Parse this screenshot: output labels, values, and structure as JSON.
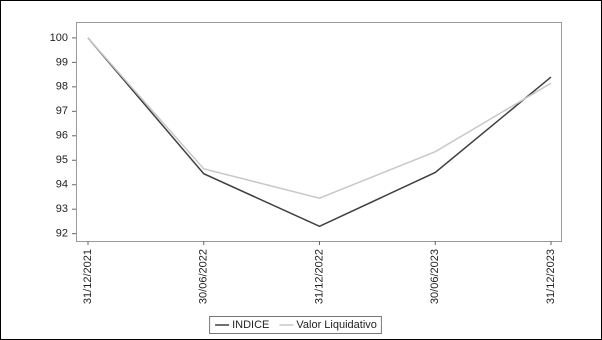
{
  "chart_data": {
    "type": "line",
    "categories": [
      "31/12/2021",
      "30/06/2022",
      "31/12/2022",
      "30/06/2023",
      "31/12/2023"
    ],
    "series": [
      {
        "name": "INDICE",
        "color": "#404040",
        "values": [
          100,
          94.45,
          92.3,
          94.5,
          98.4
        ]
      },
      {
        "name": "Valor Liquidativo",
        "color": "#c8c8c8",
        "values": [
          100,
          94.65,
          93.45,
          95.35,
          98.15
        ]
      }
    ],
    "ylim": [
      91.7,
      100.65
    ],
    "yticks": [
      92,
      93,
      94,
      95,
      96,
      97,
      98,
      99,
      100
    ]
  }
}
